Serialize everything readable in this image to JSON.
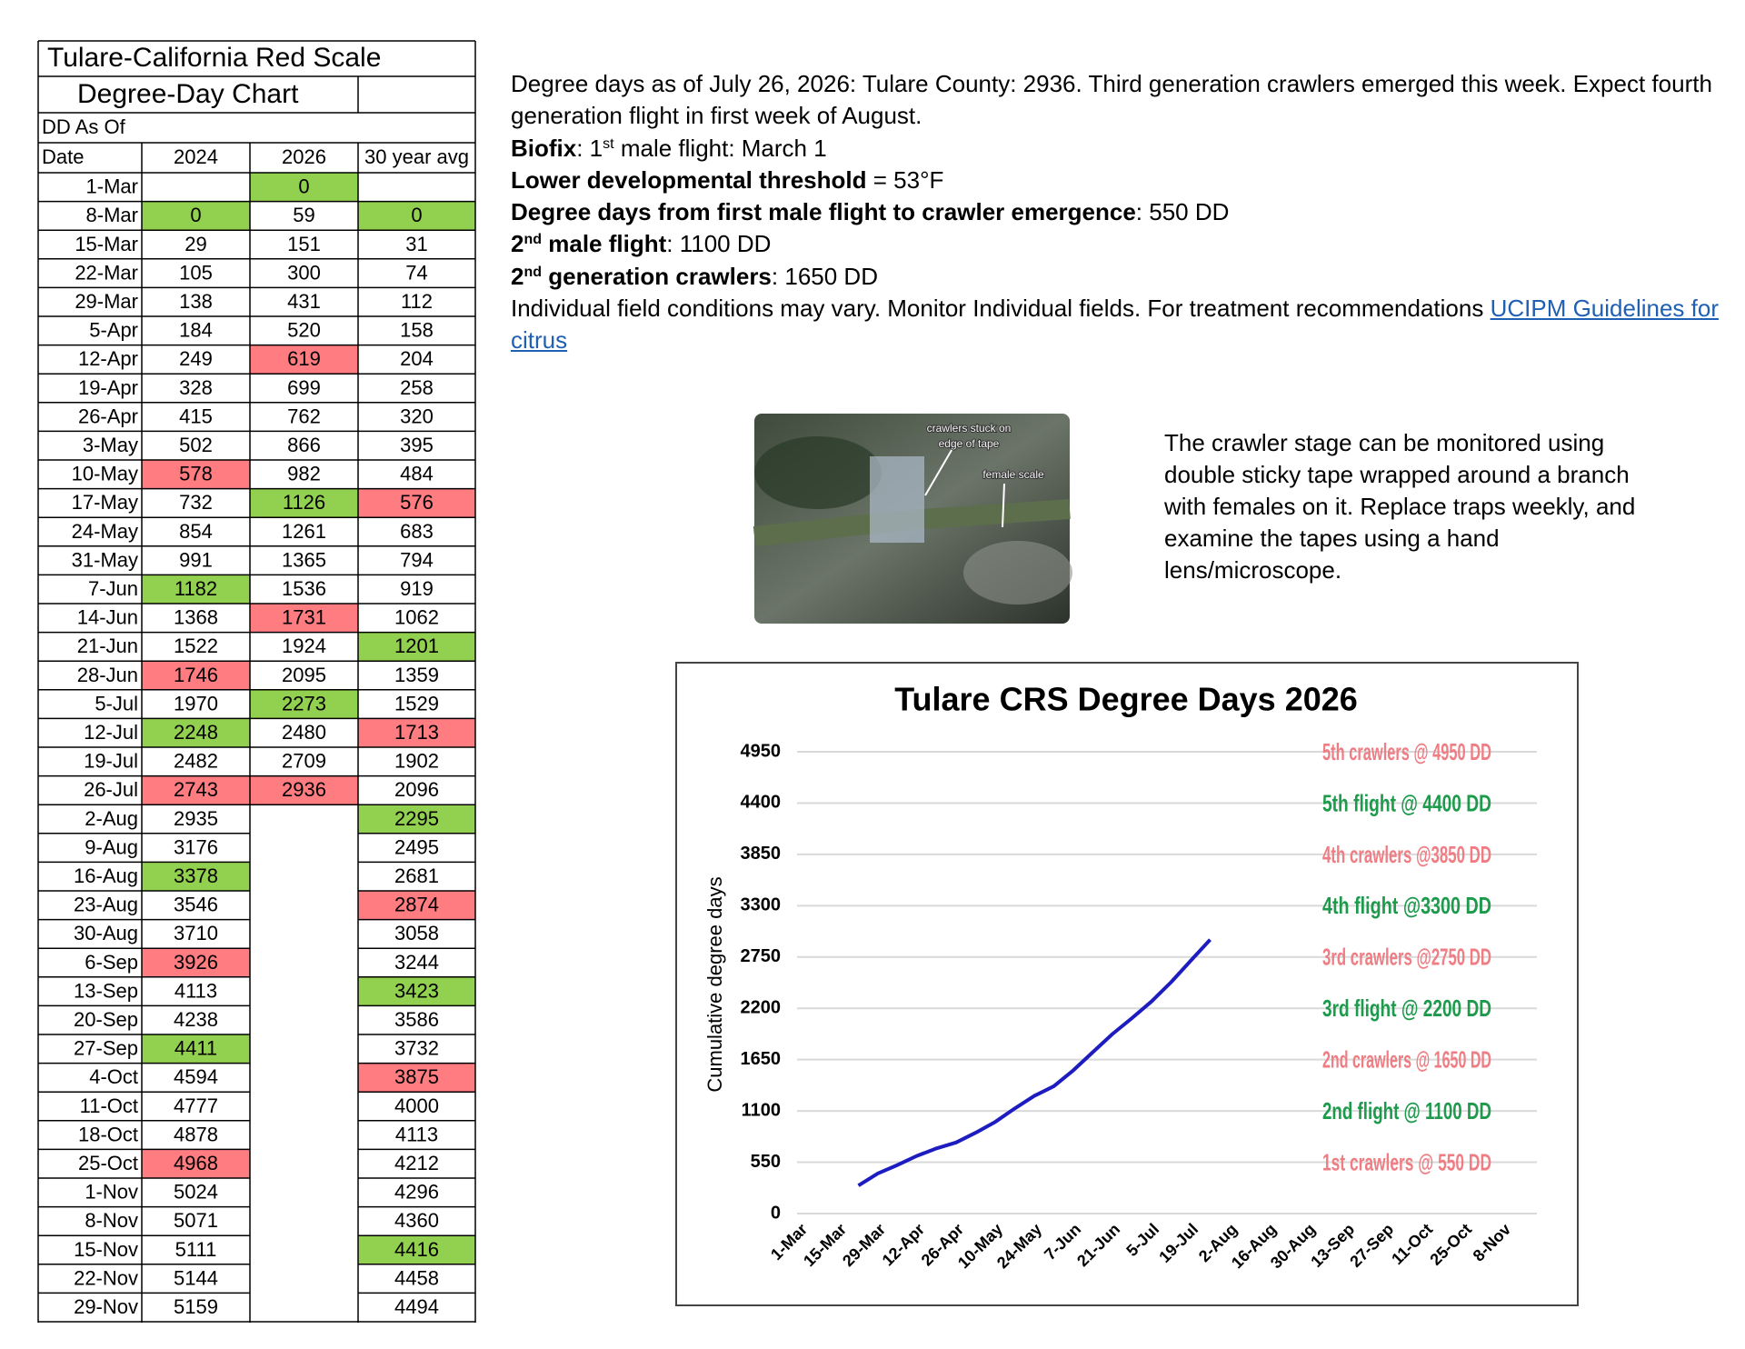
{
  "table": {
    "title": "Tulare-California Red Scale",
    "subtitle": "Degree-Day Chart",
    "dd_label": "DD As Of",
    "columns": [
      "Date",
      "2024",
      "2026",
      "30 year avg"
    ],
    "rows": [
      [
        "1-Mar",
        null,
        {
          "value": 0,
          "fill": "#92d050"
        },
        null
      ],
      [
        "8-Mar",
        {
          "value": 0,
          "fill": "#92d050"
        },
        59,
        {
          "value": 0,
          "fill": "#92d050"
        }
      ],
      [
        "15-Mar",
        29,
        151,
        31
      ],
      [
        "22-Mar",
        105,
        300,
        74
      ],
      [
        "29-Mar",
        138,
        431,
        112
      ],
      [
        "5-Apr",
        184,
        520,
        158
      ],
      [
        "12-Apr",
        249,
        {
          "value": 619,
          "fill": "#ff7c80"
        },
        204
      ],
      [
        "19-Apr",
        328,
        699,
        258
      ],
      [
        "26-Apr",
        415,
        762,
        320
      ],
      [
        "3-May",
        502,
        866,
        395
      ],
      [
        "10-May",
        {
          "value": 578,
          "fill": "#ff7c80"
        },
        982,
        484
      ],
      [
        "17-May",
        732,
        {
          "value": 1126,
          "fill": "#92d050"
        },
        {
          "value": 576,
          "fill": "#ff7c80"
        }
      ],
      [
        "24-May",
        854,
        1261,
        683
      ],
      [
        "31-May",
        991,
        1365,
        794
      ],
      [
        "7-Jun",
        {
          "value": 1182,
          "fill": "#92d050"
        },
        1536,
        919
      ],
      [
        "14-Jun",
        1368,
        {
          "value": 1731,
          "fill": "#ff7c80"
        },
        1062
      ],
      [
        "21-Jun",
        1522,
        1924,
        {
          "value": 1201,
          "fill": "#92d050"
        }
      ],
      [
        "28-Jun",
        {
          "value": 1746,
          "fill": "#ff7c80"
        },
        2095,
        1359
      ],
      [
        "5-Jul",
        1970,
        {
          "value": 2273,
          "fill": "#92d050"
        },
        1529
      ],
      [
        "12-Jul",
        {
          "value": 2248,
          "fill": "#92d050"
        },
        2480,
        {
          "value": 1713,
          "fill": "#ff7c80"
        }
      ],
      [
        "19-Jul",
        2482,
        2709,
        1902
      ],
      [
        "26-Jul",
        {
          "value": 2743,
          "fill": "#ff7c80"
        },
        {
          "value": 2936,
          "fill": "#ff7c80"
        },
        2096
      ],
      [
        "2-Aug",
        2935,
        null,
        {
          "value": 2295,
          "fill": "#92d050"
        }
      ],
      [
        "9-Aug",
        3176,
        null,
        2495
      ],
      [
        "16-Aug",
        {
          "value": 3378,
          "fill": "#92d050"
        },
        null,
        2681
      ],
      [
        "23-Aug",
        3546,
        null,
        {
          "value": 2874,
          "fill": "#ff7c80"
        }
      ],
      [
        "30-Aug",
        3710,
        null,
        3058
      ],
      [
        "6-Sep",
        {
          "value": 3926,
          "fill": "#ff7c80"
        },
        null,
        3244
      ],
      [
        "13-Sep",
        4113,
        null,
        {
          "value": 3423,
          "fill": "#92d050"
        }
      ],
      [
        "20-Sep",
        4238,
        null,
        3586
      ],
      [
        "27-Sep",
        {
          "value": 4411,
          "fill": "#92d050"
        },
        null,
        3732
      ],
      [
        "4-Oct",
        4594,
        null,
        {
          "value": 3875,
          "fill": "#ff7c80"
        }
      ],
      [
        "11-Oct",
        4777,
        null,
        4000
      ],
      [
        "18-Oct",
        4878,
        null,
        4113
      ],
      [
        "25-Oct",
        {
          "value": 4968,
          "fill": "#ff7c80"
        },
        null,
        4212
      ],
      [
        "1-Nov",
        5024,
        null,
        4296
      ],
      [
        "8-Nov",
        5071,
        null,
        4360
      ],
      [
        "15-Nov",
        5111,
        null,
        {
          "value": 4416,
          "fill": "#92d050"
        }
      ],
      [
        "22-Nov",
        5144,
        null,
        4458
      ],
      [
        "29-Nov",
        5159,
        null,
        4494
      ]
    ]
  },
  "text": [
    [
      {
        "t": "Degree days as of July 26, 2026: Tulare County: 2936. Third generation crawlers emerged this week. Expect fourth generation flight in first week of August."
      }
    ],
    [
      {
        "b": "Biofix"
      },
      {
        "t": ": 1"
      },
      {
        "sup": "st"
      },
      {
        "t": " male flight: March 1"
      }
    ],
    [
      {
        "b": "Lower developmental threshold"
      },
      {
        "t": " = 53°F"
      }
    ],
    [
      {
        "b": "Degree days from first male flight to crawler emergence"
      },
      {
        "t": ": 550 DD"
      }
    ],
    [
      {
        "b": "2"
      },
      {
        "bsup": "nd"
      },
      {
        "b": " male flight"
      },
      {
        "t": ": 1100 DD"
      }
    ],
    [
      {
        "b": "2"
      },
      {
        "bsup": "nd"
      },
      {
        "b": " generation crawlers"
      },
      {
        "t": ": 1650 DD"
      }
    ],
    [
      {
        "t": "Individual field conditions may vary. Monitor Individual fields. For treatment recommendations "
      },
      {
        "link": "UCIPM Guidelines for citrus"
      }
    ]
  ],
  "image": {
    "labels": [
      "crawlers stuck on",
      "edge of tape",
      "female scale"
    ]
  },
  "caption": "The crawler stage can be monitored using double sticky tape wrapped around a branch with females on it. Replace traps weekly, and examine the tapes using a hand lens/microscope.",
  "chart_data": {
    "type": "line",
    "title": "Tulare CRS Degree Days 2026",
    "ylabel": "Cumulative degree days",
    "categories": [
      "1-Mar",
      null,
      "15-Mar",
      null,
      "29-Mar",
      null,
      "12-Apr",
      null,
      "26-Apr",
      null,
      "10-May",
      null,
      "24-May",
      null,
      "7-Jun",
      null,
      "21-Jun",
      null,
      "5-Jul",
      null,
      "19-Jul",
      null,
      "2-Aug",
      null,
      "16-Aug",
      null,
      "30-Aug",
      null,
      "13-Sep",
      null,
      "27-Sep",
      null,
      "11-Oct",
      null,
      "25-Oct",
      null,
      "8-Nov"
    ],
    "values": [
      null,
      null,
      null,
      300,
      431,
      520,
      619,
      699,
      762,
      866,
      982,
      1126,
      1261,
      1365,
      1536,
      1731,
      1924,
      2095,
      2273,
      2480,
      2709,
      2936,
      null,
      null,
      null,
      null,
      null,
      null,
      null,
      null,
      null,
      null,
      null,
      null,
      null,
      null,
      null
    ],
    "color": "#1c1cc0",
    "ylim": [
      0,
      4950
    ],
    "yticks": [
      0,
      550,
      1100,
      1650,
      2200,
      2750,
      3300,
      3850,
      4400,
      4950
    ],
    "grid": true,
    "annotations": [
      {
        "text": "5th crawlers @ 4950 DD",
        "y": 4950,
        "color": "#ee7d84"
      },
      {
        "text": "5th flight @ 4400 DD",
        "y": 4400,
        "color": "#1e9a4c"
      },
      {
        "text": "4th crawlers @3850 DD",
        "y": 3850,
        "color": "#ee7d84"
      },
      {
        "text": "4th flight @3300 DD",
        "y": 3300,
        "color": "#1e9a4c"
      },
      {
        "text": "3rd crawlers @2750 DD",
        "y": 2750,
        "color": "#ee7d84"
      },
      {
        "text": "3rd flight @ 2200 DD",
        "y": 2200,
        "color": "#1e9a4c"
      },
      {
        "text": "2nd crawlers @ 1650 DD",
        "y": 1650,
        "color": "#ee7d84"
      },
      {
        "text": "2nd flight @ 1100 DD",
        "y": 1100,
        "color": "#1e9a4c"
      },
      {
        "text": "1st crawlers @ 550 DD",
        "y": 550,
        "color": "#ee7d84"
      }
    ]
  }
}
